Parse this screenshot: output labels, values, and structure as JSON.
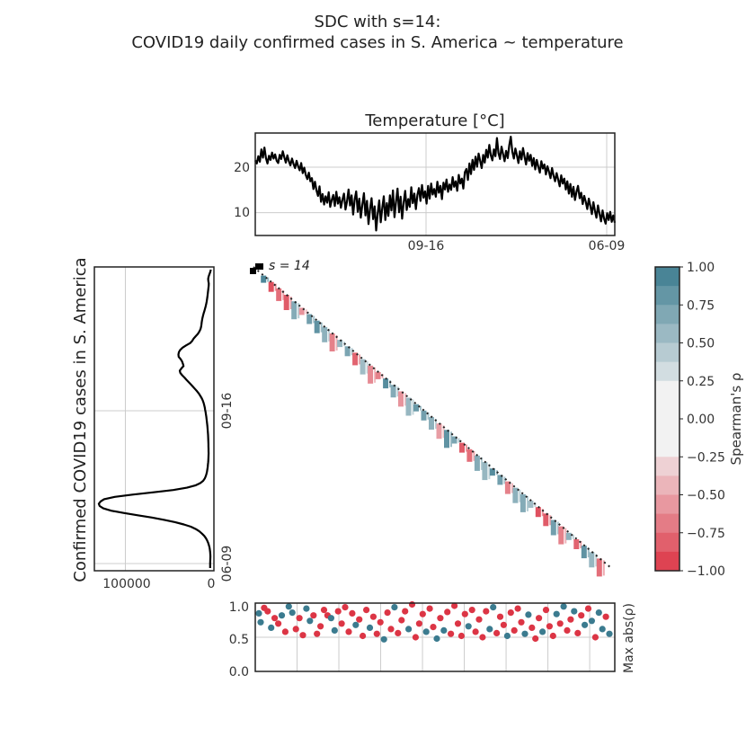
{
  "title_line1": "SDC with s=14:",
  "title_line2": "COVID19 daily confirmed cases in S. America ~ temperature",
  "chart_data": [
    {
      "panel": "temperature",
      "type": "line",
      "title": "Temperature [°C]",
      "xlabel": "",
      "ylabel": "",
      "ylim": [
        5,
        27.5
      ],
      "yticks": [
        10,
        20
      ],
      "xtick_labels": [
        "09-16",
        "06-09"
      ],
      "grid": true,
      "color": "#000000",
      "values": [
        21.5,
        20.8,
        22.4,
        21.2,
        23.9,
        22.1,
        24.3,
        22.0,
        20.8,
        22.5,
        21.6,
        23.2,
        21.9,
        22.8,
        21.4,
        20.9,
        22.7,
        21.8,
        23.5,
        22.2,
        21.0,
        22.6,
        21.3,
        20.4,
        21.9,
        20.7,
        19.8,
        21.4,
        20.2,
        19.3,
        20.9,
        18.7,
        19.9,
        18.3,
        17.4,
        18.8,
        16.9,
        17.6,
        15.2,
        16.8,
        14.9,
        13.7,
        15.8,
        12.4,
        14.1,
        11.8,
        13.6,
        12.2,
        14.5,
        11.3,
        12.8,
        13.9,
        11.5,
        14.6,
        12.0,
        13.4,
        11.1,
        12.9,
        14.2,
        10.7,
        12.5,
        15.1,
        11.6,
        13.8,
        9.6,
        12.9,
        14.7,
        10.2,
        13.1,
        8.9,
        11.7,
        14.3,
        9.4,
        12.6,
        7.5,
        10.8,
        13.2,
        8.6,
        11.4,
        6.1,
        9.8,
        12.7,
        7.9,
        11.0,
        13.6,
        8.4,
        12.1,
        9.3,
        13.8,
        10.5,
        14.9,
        9.0,
        12.4,
        15.3,
        10.1,
        13.5,
        8.7,
        12.2,
        14.8,
        10.6,
        13.0,
        11.3,
        15.6,
        12.1,
        14.2,
        10.8,
        13.9,
        15.4,
        12.6,
        16.1,
        13.3,
        14.7,
        12.0,
        15.9,
        13.1,
        16.4,
        14.0,
        15.2,
        13.5,
        16.8,
        14.4,
        15.9,
        13.0,
        16.6,
        15.1,
        17.3,
        14.6,
        16.2,
        15.0,
        17.8,
        15.7,
        16.9,
        14.8,
        18.3,
        16.4,
        17.5,
        15.3,
        18.9,
        19.6,
        17.2,
        20.8,
        18.5,
        21.6,
        19.4,
        22.3,
        20.1,
        23.0,
        21.4,
        19.8,
        22.7,
        21.0,
        23.8,
        22.1,
        24.9,
        22.6,
        21.5,
        23.9,
        22.4,
        26.4,
        23.1,
        21.8,
        24.5,
        22.9,
        21.3,
        23.6,
        22.0,
        24.8,
        26.7,
        23.4,
        21.9,
        24.1,
        22.6,
        20.9,
        23.5,
        21.7,
        24.2,
        22.3,
        20.6,
        23.1,
        21.4,
        22.7,
        20.3,
        22.0,
        19.5,
        21.6,
        20.1,
        18.8,
        21.3,
        19.7,
        20.6,
        18.4,
        20.2,
        19.0,
        17.6,
        19.8,
        18.1,
        16.9,
        18.7,
        17.3,
        15.8,
        18.2,
        16.4,
        17.5,
        15.1,
        16.9,
        14.2,
        16.3,
        13.5,
        15.7,
        12.8,
        14.6,
        15.9,
        13.2,
        14.4,
        11.9,
        13.7,
        12.4,
        10.8,
        13.1,
        11.5,
        9.7,
        12.3,
        10.4,
        8.9,
        11.6,
        9.8,
        8.1,
        10.5,
        8.7,
        7.6,
        9.9,
        8.4,
        10.2,
        8.0,
        9.4,
        7.8
      ]
    },
    {
      "panel": "cases",
      "type": "line",
      "ylabel": "Confirmed COVID19 cases in S. America",
      "xlim": [
        135000,
        0
      ],
      "xtick_labels": [
        "100000",
        "0"
      ],
      "ytick_labels": [
        "09-16",
        "06-09"
      ],
      "grid": true,
      "color": "#000000",
      "values": [
        3500,
        4200,
        5100,
        6000,
        6500,
        6300,
        5800,
        5900,
        6200,
        6500,
        6800,
        7100,
        7400,
        7800,
        8200,
        8700,
        9300,
        10000,
        10800,
        11600,
        12300,
        12900,
        13400,
        13800,
        14100,
        14500,
        15200,
        16500,
        18200,
        20600,
        22800,
        24500,
        26800,
        31500,
        35400,
        38200,
        39600,
        40100,
        39800,
        37600,
        35900,
        35000,
        34300,
        36600,
        38600,
        38000,
        35800,
        33300,
        31000,
        28500,
        26000,
        23600,
        21300,
        19000,
        17000,
        15300,
        13800,
        12600,
        11700,
        11000,
        10400,
        9900,
        9400,
        9000,
        8600,
        8300,
        8000,
        7700,
        7400,
        7200,
        7000,
        6800,
        6600,
        6500,
        6400,
        6300,
        6200,
        6150,
        6100,
        6050,
        6000,
        6050,
        6150,
        6300,
        6500,
        6750,
        7050,
        7400,
        7850,
        8400,
        9200,
        10400,
        12200,
        15400,
        21000,
        30500,
        46000,
        68000,
        92000,
        112000,
        124000,
        128000,
        130000,
        129000,
        125000,
        116000,
        102000,
        86000,
        70000,
        56000,
        44000,
        34000,
        26000,
        20500,
        16500,
        13500,
        11000,
        9000,
        7600,
        6500,
        5700,
        5000,
        4600,
        4300,
        4100,
        4000,
        4100,
        4200,
        4300,
        4300,
        4300
      ]
    },
    {
      "panel": "sdc_matrix",
      "type": "heatmap",
      "annotation": "s = 14",
      "diagonal": "dotted",
      "colorbar": {
        "label": "Spearman's ρ",
        "ticks": [
          "1.00",
          "0.75",
          "0.50",
          "0.25",
          "0.00",
          "−0.25",
          "−0.50",
          "−0.75",
          "−1.00"
        ],
        "range": [
          -1,
          1
        ],
        "positive_color": "#3b7b8f",
        "negative_color": "#dc3545",
        "neutral_color": "#f2f2f2"
      },
      "values": [
        0.9,
        -0.85,
        -0.7,
        -0.8,
        0.6,
        -0.5,
        0.7,
        0.8,
        0.55,
        -0.6,
        0.5,
        0.65,
        -0.75,
        0.45,
        -0.55,
        -0.6,
        0.85,
        0.6,
        -0.5,
        0.5,
        0.75,
        0.7,
        0.55,
        -0.45,
        0.8,
        0.65,
        -0.8,
        -0.7,
        0.6,
        0.5,
        0.85,
        0.7,
        -0.6,
        0.55,
        0.6,
        0.45,
        -0.85,
        -0.8,
        0.7,
        -0.6,
        0.55,
        -0.75,
        0.8,
        0.5,
        -0.7
      ]
    },
    {
      "panel": "max_abs_rho",
      "type": "scatter",
      "ylabel": "Max abs(ρ)",
      "ylim": [
        0,
        1
      ],
      "yticks": [
        "0.0",
        "0.5",
        "1.0"
      ],
      "grid": true,
      "series_colors": [
        "#dc3545",
        "#3b7b8f"
      ],
      "points": [
        [
          0.0,
          0.85,
          1
        ],
        [
          0.005,
          0.72,
          1
        ],
        [
          0.015,
          0.93,
          0
        ],
        [
          0.025,
          0.88,
          0
        ],
        [
          0.035,
          0.64,
          1
        ],
        [
          0.045,
          0.78,
          0
        ],
        [
          0.055,
          0.7,
          0
        ],
        [
          0.065,
          0.82,
          1
        ],
        [
          0.075,
          0.58,
          0
        ],
        [
          0.085,
          0.95,
          1
        ],
        [
          0.095,
          0.86,
          1
        ],
        [
          0.105,
          0.62,
          0
        ],
        [
          0.115,
          0.78,
          0
        ],
        [
          0.125,
          0.53,
          0
        ],
        [
          0.135,
          0.92,
          1
        ],
        [
          0.145,
          0.74,
          1
        ],
        [
          0.155,
          0.82,
          0
        ],
        [
          0.165,
          0.55,
          0
        ],
        [
          0.175,
          0.66,
          0
        ],
        [
          0.185,
          0.9,
          0
        ],
        [
          0.195,
          0.82,
          0
        ],
        [
          0.205,
          0.78,
          1
        ],
        [
          0.215,
          0.6,
          1
        ],
        [
          0.225,
          0.88,
          0
        ],
        [
          0.235,
          0.7,
          0
        ],
        [
          0.245,
          0.94,
          0
        ],
        [
          0.255,
          0.58,
          0
        ],
        [
          0.265,
          0.85,
          0
        ],
        [
          0.275,
          0.68,
          1
        ],
        [
          0.285,
          0.76,
          0
        ],
        [
          0.295,
          0.52,
          0
        ],
        [
          0.305,
          0.9,
          0
        ],
        [
          0.315,
          0.64,
          1
        ],
        [
          0.325,
          0.8,
          0
        ],
        [
          0.335,
          0.55,
          0
        ],
        [
          0.345,
          0.72,
          0
        ],
        [
          0.355,
          0.47,
          1
        ],
        [
          0.365,
          0.86,
          0
        ],
        [
          0.375,
          0.62,
          0
        ],
        [
          0.385,
          0.94,
          1
        ],
        [
          0.395,
          0.56,
          0
        ],
        [
          0.405,
          0.75,
          0
        ],
        [
          0.415,
          0.88,
          0
        ],
        [
          0.425,
          0.62,
          1
        ],
        [
          0.435,
          0.98,
          0
        ],
        [
          0.445,
          0.5,
          0
        ],
        [
          0.455,
          0.7,
          0
        ],
        [
          0.465,
          0.84,
          0
        ],
        [
          0.475,
          0.58,
          1
        ],
        [
          0.485,
          0.92,
          0
        ],
        [
          0.495,
          0.65,
          0
        ],
        [
          0.505,
          0.48,
          1
        ],
        [
          0.515,
          0.78,
          0
        ],
        [
          0.525,
          0.6,
          1
        ],
        [
          0.535,
          0.87,
          0
        ],
        [
          0.545,
          0.55,
          0
        ],
        [
          0.555,
          0.96,
          0
        ],
        [
          0.565,
          0.7,
          0
        ],
        [
          0.575,
          0.52,
          0
        ],
        [
          0.585,
          0.84,
          0
        ],
        [
          0.595,
          0.66,
          1
        ],
        [
          0.605,
          0.9,
          0
        ],
        [
          0.615,
          0.58,
          0
        ],
        [
          0.625,
          0.76,
          0
        ],
        [
          0.635,
          0.5,
          0
        ],
        [
          0.645,
          0.88,
          0
        ],
        [
          0.655,
          0.62,
          1
        ],
        [
          0.665,
          0.94,
          1
        ],
        [
          0.675,
          0.56,
          0
        ],
        [
          0.685,
          0.8,
          0
        ],
        [
          0.695,
          0.68,
          0
        ],
        [
          0.705,
          0.52,
          1
        ],
        [
          0.715,
          0.86,
          0
        ],
        [
          0.725,
          0.6,
          0
        ],
        [
          0.735,
          0.92,
          0
        ],
        [
          0.745,
          0.72,
          0
        ],
        [
          0.755,
          0.55,
          1
        ],
        [
          0.765,
          0.83,
          1
        ],
        [
          0.775,
          0.64,
          0
        ],
        [
          0.785,
          0.48,
          0
        ],
        [
          0.795,
          0.78,
          0
        ],
        [
          0.805,
          0.58,
          1
        ],
        [
          0.815,
          0.9,
          0
        ],
        [
          0.825,
          0.66,
          0
        ],
        [
          0.835,
          0.52,
          0
        ],
        [
          0.845,
          0.84,
          1
        ],
        [
          0.855,
          0.7,
          0
        ],
        [
          0.865,
          0.95,
          1
        ],
        [
          0.875,
          0.6,
          0
        ],
        [
          0.885,
          0.76,
          0
        ],
        [
          0.895,
          0.88,
          1
        ],
        [
          0.905,
          0.56,
          0
        ],
        [
          0.915,
          0.82,
          0
        ],
        [
          0.925,
          0.68,
          1
        ],
        [
          0.935,
          0.92,
          0
        ],
        [
          0.945,
          0.74,
          1
        ],
        [
          0.955,
          0.5,
          0
        ],
        [
          0.965,
          0.86,
          1
        ],
        [
          0.975,
          0.62,
          1
        ],
        [
          0.985,
          0.8,
          0
        ],
        [
          0.995,
          0.55,
          1
        ]
      ]
    }
  ]
}
